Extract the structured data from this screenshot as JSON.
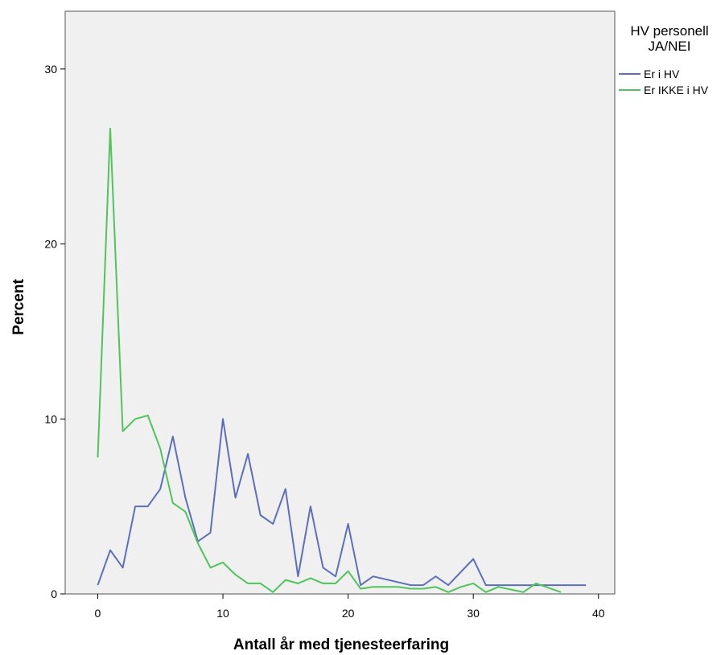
{
  "chart_data": {
    "type": "line",
    "xlabel": "Antall år med tjenesteerfaring",
    "ylabel": "Percent",
    "xlim": [
      -2.6,
      41.3
    ],
    "ylim": [
      0,
      33.3
    ],
    "x_ticks": [
      0,
      10,
      20,
      30,
      40
    ],
    "y_ticks": [
      0,
      10,
      20,
      30
    ],
    "grid": false,
    "plot_background": "#f0f0f0",
    "legend": {
      "title_lines": [
        "HV personell",
        "JA/NEI"
      ],
      "placement": "right"
    },
    "series": [
      {
        "name": "Er i HV",
        "color": "#5b6fbb",
        "points": [
          [
            0,
            0.5
          ],
          [
            1,
            2.5
          ],
          [
            2,
            1.5
          ],
          [
            3,
            5
          ],
          [
            4,
            5
          ],
          [
            5,
            6
          ],
          [
            6,
            9
          ],
          [
            7,
            5.5
          ],
          [
            8,
            3
          ],
          [
            9,
            3.5
          ],
          [
            10,
            10
          ],
          [
            11,
            5.5
          ],
          [
            12,
            8
          ],
          [
            13,
            4.5
          ],
          [
            14,
            4
          ],
          [
            15,
            6
          ],
          [
            16,
            1
          ],
          [
            17,
            5
          ],
          [
            18,
            1.5
          ],
          [
            19,
            1
          ],
          [
            20,
            4
          ],
          [
            21,
            0.5
          ],
          [
            22,
            1
          ],
          [
            25,
            0.5
          ],
          [
            26,
            0.5
          ],
          [
            27,
            1
          ],
          [
            28,
            0.5
          ],
          [
            30,
            2
          ],
          [
            31,
            0.5
          ],
          [
            39,
            0.5
          ]
        ]
      },
      {
        "name": "Er IKKE i HV",
        "color": "#4fc45a",
        "points": [
          [
            0,
            7.8
          ],
          [
            1,
            26.6
          ],
          [
            2,
            9.3
          ],
          [
            3,
            10
          ],
          [
            4,
            10.2
          ],
          [
            5,
            8.3
          ],
          [
            6,
            5.2
          ],
          [
            7,
            4.7
          ],
          [
            8,
            2.9
          ],
          [
            9,
            1.5
          ],
          [
            10,
            1.8
          ],
          [
            11,
            1.1
          ],
          [
            12,
            0.6
          ],
          [
            13,
            0.6
          ],
          [
            14,
            0.1
          ],
          [
            15,
            0.8
          ],
          [
            16,
            0.6
          ],
          [
            17,
            0.9
          ],
          [
            18,
            0.6
          ],
          [
            19,
            0.6
          ],
          [
            20,
            1.3
          ],
          [
            21,
            0.3
          ],
          [
            22,
            0.4
          ],
          [
            24,
            0.4
          ],
          [
            25,
            0.3
          ],
          [
            26,
            0.3
          ],
          [
            27,
            0.4
          ],
          [
            28,
            0.1
          ],
          [
            29,
            0.4
          ],
          [
            30,
            0.6
          ],
          [
            31,
            0.1
          ],
          [
            32,
            0.4
          ],
          [
            34,
            0.1
          ],
          [
            35,
            0.6
          ],
          [
            37,
            0.1
          ]
        ]
      }
    ]
  }
}
